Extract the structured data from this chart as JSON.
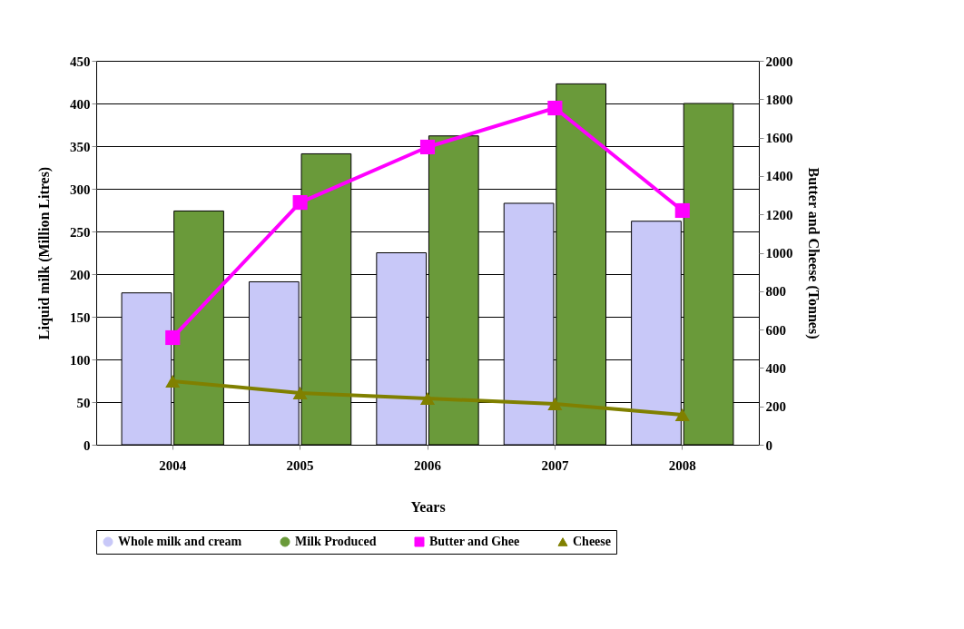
{
  "chart_data": {
    "type": "bar",
    "xlabel": "Years",
    "ylabel": "Liquid milk (Million Litres)",
    "y2label": "Butter and Cheese (Tonnes)",
    "categories": [
      "2004",
      "2005",
      "2006",
      "2007",
      "2008"
    ],
    "series": [
      {
        "name": "Whole milk and cream",
        "color": "#c8c8f8",
        "values": [
          178,
          191,
          225,
          283,
          262
        ]
      },
      {
        "name": "Milk Produced",
        "color": "#6a9a3a",
        "values": [
          274,
          341,
          362,
          423,
          400
        ]
      },
      {
        "name": "Butter and Ghee",
        "type": "line",
        "axis": "y2",
        "marker": "square",
        "color": "#ff00ff",
        "values": [
          558,
          1262,
          1551,
          1754,
          1220
        ]
      },
      {
        "name": "Cheese",
        "type": "line",
        "axis": "y2",
        "marker": "triangle",
        "color": "#808000",
        "values": [
          331,
          270,
          241,
          213,
          156
        ]
      }
    ],
    "ylim": [
      0,
      450
    ],
    "yticks": [
      0,
      50,
      100,
      150,
      200,
      250,
      300,
      350,
      400,
      450
    ],
    "y2lim": [
      0,
      2000
    ],
    "y2ticks": [
      0,
      200,
      400,
      600,
      800,
      1000,
      1200,
      1400,
      1600,
      1800,
      2000
    ],
    "grid": "y",
    "legend": "bottom"
  }
}
